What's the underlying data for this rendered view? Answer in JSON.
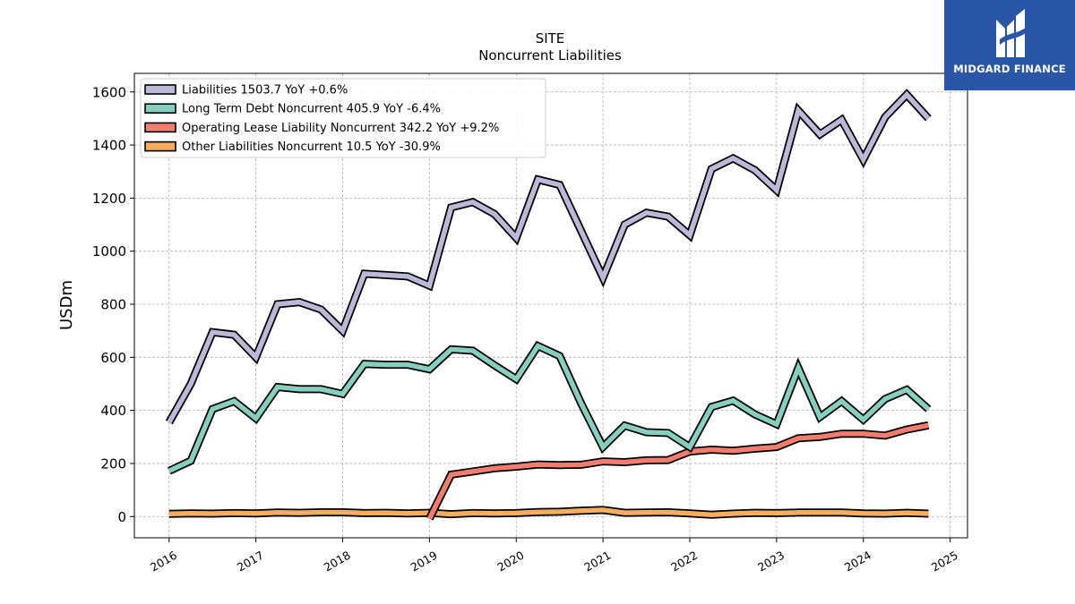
{
  "chart_data": {
    "type": "line",
    "title": "SITE",
    "subtitle": "Noncurrent  Liabilities",
    "xlabel": "",
    "ylabel": "USDm",
    "xlim": [
      2015.6,
      2025.2
    ],
    "ylim": [
      -80,
      1670
    ],
    "x_ticks": [
      2016,
      2017,
      2018,
      2019,
      2020,
      2021,
      2022,
      2023,
      2024,
      2025
    ],
    "x_tick_labels": [
      "2016",
      "2017",
      "2018",
      "2019",
      "2020",
      "2021",
      "2022",
      "2023",
      "2024",
      "2025"
    ],
    "y_ticks": [
      0,
      200,
      400,
      600,
      800,
      1000,
      1200,
      1400,
      1600
    ],
    "y_tick_labels": [
      "0",
      "200",
      "400",
      "600",
      "800",
      "1000",
      "1200",
      "1400",
      "1600"
    ],
    "grid": true,
    "legend_position": "top-left",
    "series": [
      {
        "name": "Liabilities",
        "legend": "Liabilities  1503.7 YoY +0.6%",
        "color": "#bcb8d8",
        "points": [
          [
            2016.0,
            355
          ],
          [
            2016.25,
            500
          ],
          [
            2016.5,
            695
          ],
          [
            2016.75,
            685
          ],
          [
            2017.0,
            600
          ],
          [
            2017.25,
            800
          ],
          [
            2017.5,
            808
          ],
          [
            2017.75,
            780
          ],
          [
            2018.0,
            700
          ],
          [
            2018.25,
            915
          ],
          [
            2018.5,
            910
          ],
          [
            2018.75,
            905
          ],
          [
            2019.0,
            870
          ],
          [
            2019.25,
            1165
          ],
          [
            2019.5,
            1185
          ],
          [
            2019.75,
            1140
          ],
          [
            2020.0,
            1050
          ],
          [
            2020.25,
            1270
          ],
          [
            2020.5,
            1250
          ],
          [
            2020.75,
            1075
          ],
          [
            2021.0,
            900
          ],
          [
            2021.25,
            1100
          ],
          [
            2021.5,
            1145
          ],
          [
            2021.75,
            1130
          ],
          [
            2022.0,
            1060
          ],
          [
            2022.25,
            1310
          ],
          [
            2022.5,
            1350
          ],
          [
            2022.75,
            1305
          ],
          [
            2023.0,
            1230
          ],
          [
            2023.25,
            1530
          ],
          [
            2023.5,
            1440
          ],
          [
            2023.75,
            1495
          ],
          [
            2024.0,
            1345
          ],
          [
            2024.25,
            1505
          ],
          [
            2024.5,
            1590
          ],
          [
            2024.75,
            1500
          ]
        ]
      },
      {
        "name": "Long Term Debt Noncurrent",
        "legend": "Long Term Debt Noncurrent  405.9 YoY -6.4%",
        "color": "#86cfbf",
        "points": [
          [
            2016.0,
            172
          ],
          [
            2016.25,
            210
          ],
          [
            2016.5,
            405
          ],
          [
            2016.75,
            435
          ],
          [
            2017.0,
            370
          ],
          [
            2017.25,
            488
          ],
          [
            2017.5,
            480
          ],
          [
            2017.75,
            480
          ],
          [
            2018.0,
            462
          ],
          [
            2018.25,
            575
          ],
          [
            2018.5,
            572
          ],
          [
            2018.75,
            572
          ],
          [
            2019.0,
            555
          ],
          [
            2019.25,
            630
          ],
          [
            2019.5,
            625
          ],
          [
            2019.75,
            570
          ],
          [
            2020.0,
            518
          ],
          [
            2020.25,
            643
          ],
          [
            2020.5,
            605
          ],
          [
            2020.75,
            425
          ],
          [
            2021.0,
            262
          ],
          [
            2021.25,
            343
          ],
          [
            2021.5,
            318
          ],
          [
            2021.75,
            315
          ],
          [
            2022.0,
            262
          ],
          [
            2022.25,
            413
          ],
          [
            2022.5,
            437
          ],
          [
            2022.75,
            385
          ],
          [
            2023.0,
            348
          ],
          [
            2023.25,
            560
          ],
          [
            2023.5,
            375
          ],
          [
            2023.75,
            435
          ],
          [
            2024.0,
            365
          ],
          [
            2024.25,
            443
          ],
          [
            2024.5,
            478
          ],
          [
            2024.75,
            405
          ]
        ]
      },
      {
        "name": "Operating Lease Liability Noncurrent",
        "legend": "Operating Lease Liability Noncurrent  342.2 YoY +9.2%",
        "color": "#f07d6e",
        "points": [
          [
            2019.0,
            -8
          ],
          [
            2019.25,
            158
          ],
          [
            2019.5,
            170
          ],
          [
            2019.75,
            182
          ],
          [
            2020.0,
            188
          ],
          [
            2020.25,
            196
          ],
          [
            2020.5,
            194
          ],
          [
            2020.75,
            195
          ],
          [
            2021.0,
            208
          ],
          [
            2021.25,
            205
          ],
          [
            2021.5,
            212
          ],
          [
            2021.75,
            213
          ],
          [
            2022.0,
            245
          ],
          [
            2022.25,
            252
          ],
          [
            2022.5,
            248
          ],
          [
            2022.75,
            256
          ],
          [
            2023.0,
            262
          ],
          [
            2023.25,
            295
          ],
          [
            2023.5,
            300
          ],
          [
            2023.75,
            312
          ],
          [
            2024.0,
            312
          ],
          [
            2024.25,
            305
          ],
          [
            2024.5,
            328
          ],
          [
            2024.75,
            344
          ]
        ]
      },
      {
        "name": "Other Liabilities Noncurrent",
        "legend": "Other Liabilities Noncurrent  10.5 YoY -30.9%",
        "color": "#f5ad5f",
        "points": [
          [
            2016.0,
            10
          ],
          [
            2016.25,
            12
          ],
          [
            2016.5,
            11
          ],
          [
            2016.75,
            13
          ],
          [
            2017.0,
            12
          ],
          [
            2017.25,
            15
          ],
          [
            2017.5,
            14
          ],
          [
            2017.75,
            16
          ],
          [
            2018.0,
            16
          ],
          [
            2018.25,
            13
          ],
          [
            2018.5,
            14
          ],
          [
            2018.75,
            12
          ],
          [
            2019.0,
            14
          ],
          [
            2019.25,
            9
          ],
          [
            2019.5,
            13
          ],
          [
            2019.75,
            12
          ],
          [
            2020.0,
            13
          ],
          [
            2020.25,
            17
          ],
          [
            2020.5,
            18
          ],
          [
            2020.75,
            22
          ],
          [
            2021.0,
            25
          ],
          [
            2021.25,
            14
          ],
          [
            2021.5,
            15
          ],
          [
            2021.75,
            16
          ],
          [
            2022.0,
            12
          ],
          [
            2022.25,
            7
          ],
          [
            2022.5,
            11
          ],
          [
            2022.75,
            14
          ],
          [
            2023.0,
            13
          ],
          [
            2023.25,
            15
          ],
          [
            2023.5,
            15
          ],
          [
            2023.75,
            15
          ],
          [
            2024.0,
            12
          ],
          [
            2024.25,
            11
          ],
          [
            2024.5,
            14
          ],
          [
            2024.75,
            11
          ]
        ]
      }
    ]
  },
  "logo": {
    "text": "MIDGARD FINANCE",
    "background": "#2a56a8",
    "icon": "midgard-logo-mark"
  }
}
